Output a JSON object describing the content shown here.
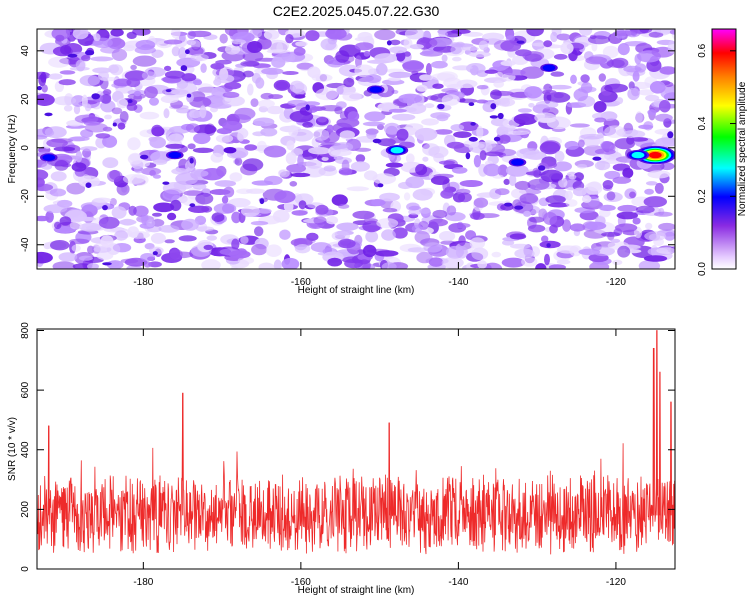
{
  "title": "C2E2.2025.045.07.22.G30",
  "chart_data": [
    {
      "type": "heatmap",
      "title": "C2E2.2025.045.07.22.G30",
      "xlabel": "Height of straight line (km)",
      "ylabel": "Frequency (Hz)",
      "xlim": [
        -193.5,
        -112.5
      ],
      "ylim": [
        -50,
        49
      ],
      "xticks": [
        -180,
        -160,
        -140,
        -120
      ],
      "xtick_labels": [
        "-180",
        "-160",
        "-140",
        "-120"
      ],
      "yticks": [
        -40,
        -20,
        0,
        20,
        40
      ],
      "ytick_labels": [
        "-40",
        "-20",
        "0",
        "20",
        "40"
      ],
      "colorbar": {
        "label": "Normalized spectral amplitude",
        "range": [
          0,
          0.66
        ],
        "ticks": [
          0,
          0.2,
          0.4,
          0.6
        ],
        "tick_labels": [
          "0.0",
          "0.2",
          "0.4",
          "0.6"
        ]
      },
      "hotspots": [
        {
          "x": -115.0,
          "y": -3,
          "value": 0.5
        },
        {
          "x": -117.2,
          "y": -3,
          "value": 0.25
        },
        {
          "x": -147.8,
          "y": -1,
          "value": 0.24
        },
        {
          "x": -128.5,
          "y": 33,
          "value": 0.18
        },
        {
          "x": -192.0,
          "y": -4,
          "value": 0.15
        },
        {
          "x": -176.0,
          "y": -3,
          "value": 0.13
        },
        {
          "x": -169.0,
          "y": -1,
          "value": 0.12
        },
        {
          "x": -150.5,
          "y": 24,
          "value": 0.16
        },
        {
          "x": -132.5,
          "y": -6,
          "value": 0.13
        }
      ]
    },
    {
      "type": "line",
      "xlabel": "Height of straight line (km)",
      "ylabel": "SNR (10 * v/v)",
      "xlim": [
        -193.5,
        -112.5
      ],
      "ylim": [
        0,
        805
      ],
      "xticks": [
        -180,
        -160,
        -140,
        -120
      ],
      "xtick_labels": [
        "-180",
        "-160",
        "-140",
        "-120"
      ],
      "yticks": [
        0,
        200,
        400,
        600,
        800
      ],
      "ytick_labels": [
        "0",
        "200",
        "400",
        "600",
        "800"
      ],
      "series": [
        {
          "name": "SNR",
          "color": "#ee2a2a",
          "baseline": 180,
          "peaks": [
            {
              "x": -175.0,
              "y": 590
            },
            {
              "x": -114.8,
              "y": 800
            },
            {
              "x": -115.2,
              "y": 740
            },
            {
              "x": -114.4,
              "y": 660
            },
            {
              "x": -113.0,
              "y": 560
            },
            {
              "x": -148.8,
              "y": 490
            },
            {
              "x": -192.0,
              "y": 480
            }
          ]
        }
      ]
    }
  ]
}
